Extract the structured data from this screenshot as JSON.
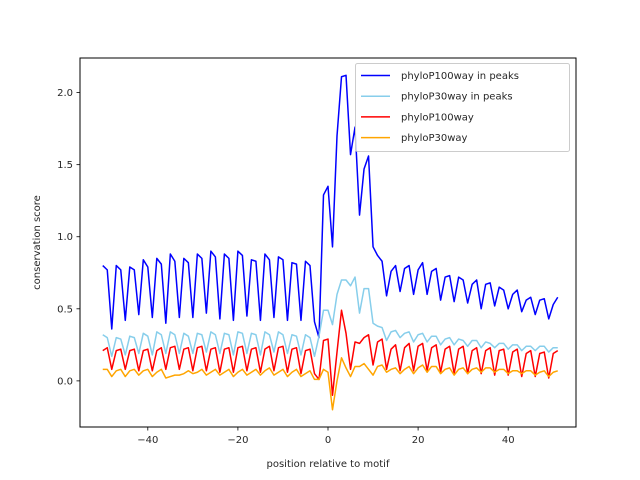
{
  "chart_data": {
    "type": "line",
    "title": "",
    "xlabel": "position relative to motif",
    "ylabel": "conservation score",
    "xlim": [
      -55.05,
      55.05
    ],
    "ylim": [
      -0.32,
      2.24
    ],
    "xticks": [
      -40,
      -20,
      0,
      20,
      40
    ],
    "xtick_labels": [
      "−40",
      "−20",
      "0",
      "20",
      "40"
    ],
    "yticks": [
      0.0,
      0.5,
      1.0,
      1.5,
      2.0
    ],
    "ytick_labels": [
      "0.0",
      "0.5",
      "1.0",
      "1.5",
      "2.0"
    ],
    "grid": false,
    "legend_position": "top-right",
    "x_start": -50,
    "x_end": 50,
    "series": [
      {
        "name": "phyloP100way in peaks",
        "color": "#0000ff",
        "values": [
          0.8,
          0.77,
          0.36,
          0.8,
          0.77,
          0.42,
          0.79,
          0.77,
          0.46,
          0.84,
          0.79,
          0.44,
          0.85,
          0.81,
          0.4,
          0.88,
          0.83,
          0.44,
          0.85,
          0.82,
          0.44,
          0.88,
          0.85,
          0.47,
          0.9,
          0.86,
          0.43,
          0.88,
          0.85,
          0.42,
          0.9,
          0.87,
          0.45,
          0.84,
          0.83,
          0.42,
          0.88,
          0.84,
          0.44,
          0.86,
          0.84,
          0.42,
          0.82,
          0.81,
          0.42,
          0.83,
          0.8,
          0.41,
          0.3,
          1.29,
          1.35,
          0.93,
          1.7,
          2.11,
          2.12,
          1.57,
          1.76,
          1.15,
          1.47,
          1.56,
          0.93,
          0.87,
          0.83,
          0.59,
          0.76,
          0.8,
          0.62,
          0.78,
          0.8,
          0.6,
          0.77,
          0.82,
          0.6,
          0.76,
          0.78,
          0.56,
          0.72,
          0.73,
          0.55,
          0.72,
          0.7,
          0.54,
          0.67,
          0.7,
          0.5,
          0.67,
          0.68,
          0.52,
          0.65,
          0.63,
          0.5,
          0.6,
          0.63,
          0.48,
          0.56,
          0.58,
          0.46,
          0.56,
          0.57,
          0.43,
          0.53,
          0.58
        ]
      },
      {
        "name": "phyloP30way in peaks",
        "color": "#87ceeb",
        "values": [
          0.32,
          0.3,
          0.17,
          0.3,
          0.29,
          0.18,
          0.31,
          0.3,
          0.19,
          0.33,
          0.31,
          0.18,
          0.34,
          0.32,
          0.19,
          0.34,
          0.32,
          0.19,
          0.33,
          0.31,
          0.19,
          0.33,
          0.32,
          0.2,
          0.34,
          0.32,
          0.19,
          0.33,
          0.32,
          0.18,
          0.34,
          0.33,
          0.19,
          0.33,
          0.32,
          0.18,
          0.34,
          0.32,
          0.2,
          0.34,
          0.32,
          0.19,
          0.32,
          0.31,
          0.18,
          0.32,
          0.3,
          0.17,
          0.31,
          0.49,
          0.49,
          0.39,
          0.6,
          0.7,
          0.7,
          0.66,
          0.72,
          0.47,
          0.64,
          0.64,
          0.4,
          0.38,
          0.37,
          0.28,
          0.34,
          0.35,
          0.3,
          0.33,
          0.34,
          0.27,
          0.32,
          0.33,
          0.27,
          0.31,
          0.31,
          0.25,
          0.29,
          0.3,
          0.25,
          0.29,
          0.28,
          0.24,
          0.28,
          0.28,
          0.23,
          0.27,
          0.26,
          0.23,
          0.26,
          0.26,
          0.22,
          0.25,
          0.25,
          0.21,
          0.24,
          0.24,
          0.21,
          0.24,
          0.24,
          0.2,
          0.23,
          0.23
        ]
      },
      {
        "name": "phyloP100way",
        "color": "#ff0000",
        "values": [
          0.21,
          0.23,
          0.08,
          0.21,
          0.22,
          0.08,
          0.21,
          0.22,
          0.07,
          0.21,
          0.22,
          0.07,
          0.21,
          0.23,
          0.08,
          0.23,
          0.24,
          0.08,
          0.22,
          0.23,
          0.07,
          0.23,
          0.24,
          0.07,
          0.22,
          0.23,
          0.06,
          0.22,
          0.23,
          0.06,
          0.23,
          0.24,
          0.07,
          0.22,
          0.23,
          0.06,
          0.22,
          0.24,
          0.07,
          0.23,
          0.24,
          0.06,
          0.22,
          0.23,
          0.05,
          0.21,
          0.22,
          0.05,
          0.01,
          0.28,
          0.29,
          -0.1,
          0.2,
          0.49,
          0.33,
          0.08,
          0.27,
          0.26,
          0.3,
          0.32,
          0.11,
          0.27,
          0.29,
          0.08,
          0.22,
          0.25,
          0.07,
          0.23,
          0.26,
          0.07,
          0.24,
          0.26,
          0.07,
          0.23,
          0.25,
          0.06,
          0.22,
          0.24,
          0.05,
          0.22,
          0.24,
          0.05,
          0.21,
          0.23,
          0.05,
          0.21,
          0.23,
          0.04,
          0.21,
          0.22,
          0.04,
          0.2,
          0.22,
          0.03,
          0.19,
          0.21,
          0.03,
          0.19,
          0.2,
          0.02,
          0.19,
          0.21
        ]
      },
      {
        "name": "phyloP30way",
        "color": "#ffa500",
        "values": [
          0.08,
          0.08,
          0.03,
          0.07,
          0.08,
          0.03,
          0.07,
          0.08,
          0.04,
          0.07,
          0.08,
          0.03,
          0.06,
          0.08,
          0.02,
          0.03,
          0.04,
          0.04,
          0.05,
          0.07,
          0.05,
          0.06,
          0.08,
          0.04,
          0.06,
          0.08,
          0.04,
          0.06,
          0.08,
          0.03,
          0.06,
          0.08,
          0.04,
          0.06,
          0.08,
          0.04,
          0.07,
          0.09,
          0.04,
          0.06,
          0.08,
          0.03,
          0.06,
          0.08,
          0.03,
          0.05,
          0.07,
          0.01,
          0.01,
          0.08,
          0.06,
          -0.2,
          0.0,
          0.16,
          0.09,
          0.03,
          0.1,
          0.1,
          0.12,
          0.08,
          0.04,
          0.1,
          0.11,
          0.06,
          0.08,
          0.09,
          0.05,
          0.08,
          0.1,
          0.05,
          0.09,
          0.11,
          0.06,
          0.1,
          0.1,
          0.05,
          0.08,
          0.09,
          0.04,
          0.08,
          0.09,
          0.05,
          0.08,
          0.09,
          0.06,
          0.09,
          0.09,
          0.06,
          0.08,
          0.08,
          0.05,
          0.07,
          0.07,
          0.05,
          0.07,
          0.07,
          0.04,
          0.06,
          0.07,
          0.03,
          0.06,
          0.07
        ]
      }
    ]
  }
}
